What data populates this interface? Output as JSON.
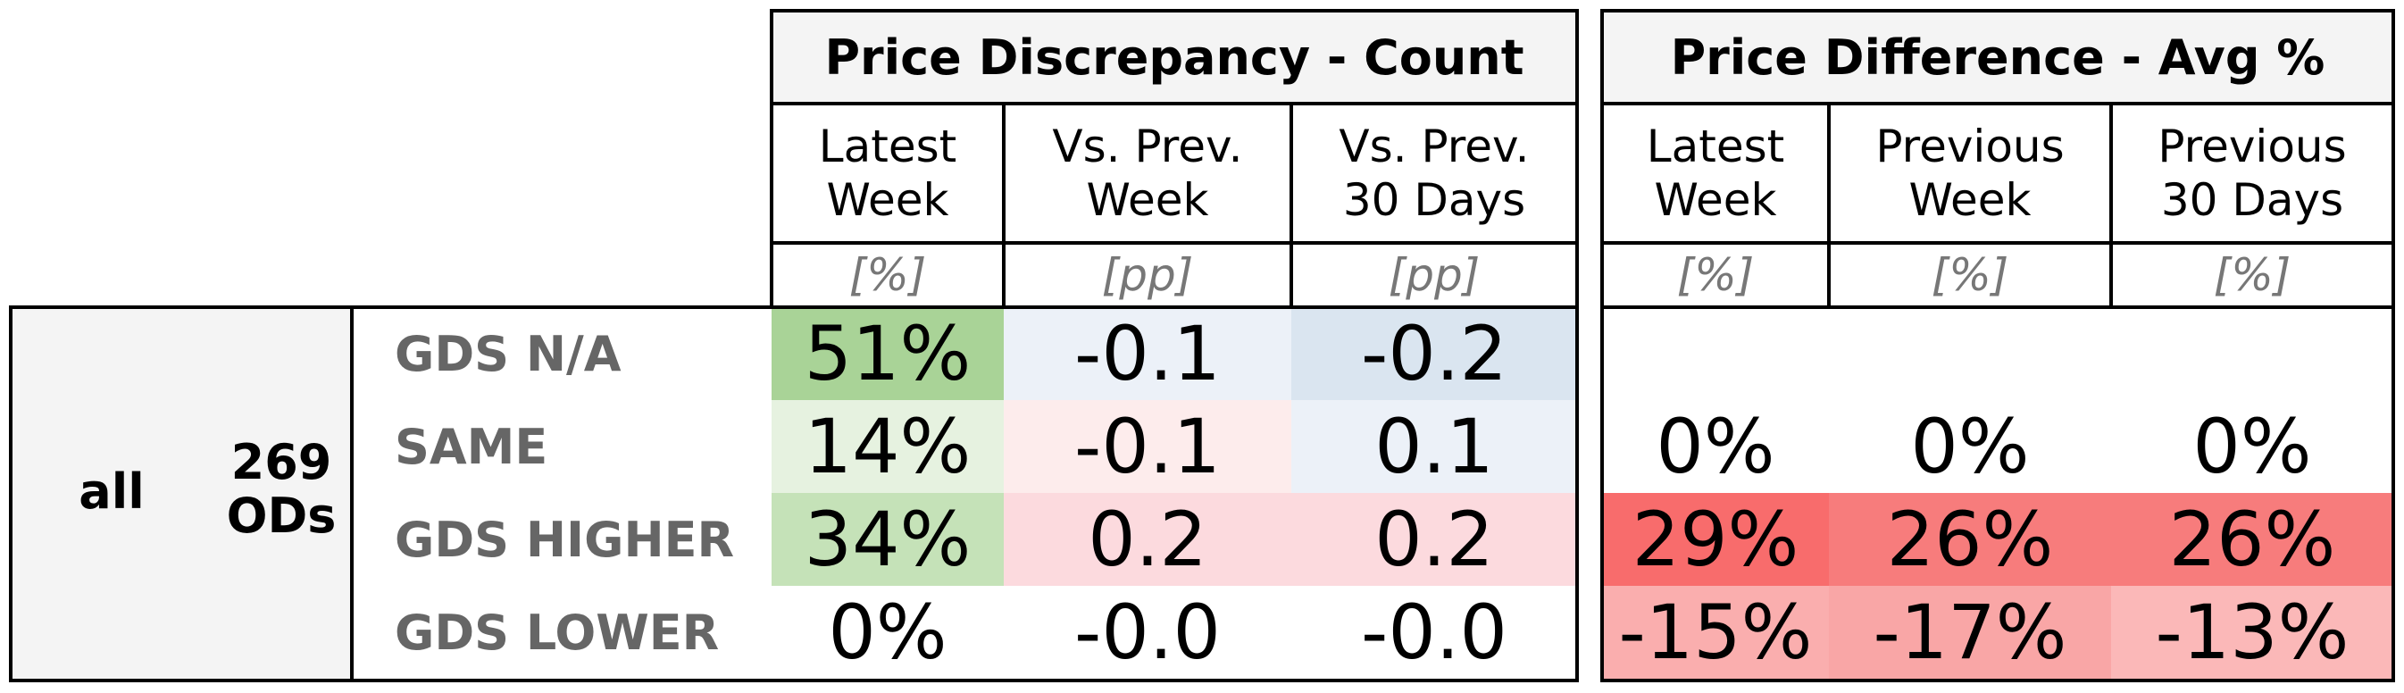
{
  "left_panel": {
    "group_label": "all",
    "od_count": "269",
    "od_unit": "ODs",
    "rows": [
      "GDS N/A",
      "SAME",
      "GDS HIGHER",
      "GDS LOWER"
    ]
  },
  "count_table": {
    "title": "Price Discrepancy - Count",
    "columns": [
      {
        "header": "Latest\nWeek",
        "unit": "[%]"
      },
      {
        "header": "Vs. Prev.\nWeek",
        "unit": "[pp]"
      },
      {
        "header": "Vs. Prev.\n30 Days",
        "unit": "[pp]"
      }
    ],
    "cells": [
      [
        {
          "value": "51%",
          "color": "#a9d397"
        },
        {
          "value": "-0.1",
          "color": "#ecf1f8"
        },
        {
          "value": "-0.2",
          "color": "#dae5f0"
        }
      ],
      [
        {
          "value": "14%",
          "color": "#e6f2e0"
        },
        {
          "value": "-0.1",
          "color": "#fdecec"
        },
        {
          "value": "0.1",
          "color": "#ecf1f8"
        }
      ],
      [
        {
          "value": "34%",
          "color": "#c5e2b8"
        },
        {
          "value": "0.2",
          "color": "#fcdade"
        },
        {
          "value": "0.2",
          "color": "#fcdade"
        }
      ],
      [
        {
          "value": "0%",
          "color": "#ffffff"
        },
        {
          "value": "-0.0",
          "color": "#ffffff"
        },
        {
          "value": "-0.0",
          "color": "#ffffff"
        }
      ]
    ]
  },
  "avg_table": {
    "title": "Price Difference - Avg %",
    "columns": [
      {
        "header": "Latest\nWeek",
        "unit": "[%]"
      },
      {
        "header": "Previous\nWeek",
        "unit": "[%]"
      },
      {
        "header": "Previous\n30 Days",
        "unit": "[%]"
      }
    ],
    "cells": [
      [
        {
          "value": "",
          "color": "#ffffff"
        },
        {
          "value": "",
          "color": "#ffffff"
        },
        {
          "value": "",
          "color": "#ffffff"
        }
      ],
      [
        {
          "value": "0%",
          "color": "#ffffff"
        },
        {
          "value": "0%",
          "color": "#ffffff"
        },
        {
          "value": "0%",
          "color": "#ffffff"
        }
      ],
      [
        {
          "value": "29%",
          "color": "#f86c6c"
        },
        {
          "value": "26%",
          "color": "#f77c7c"
        },
        {
          "value": "26%",
          "color": "#f77c7c"
        }
      ],
      [
        {
          "value": "-15%",
          "color": "#faaeae"
        },
        {
          "value": "-17%",
          "color": "#f9a6a6"
        },
        {
          "value": "-13%",
          "color": "#fbb8b8"
        }
      ]
    ]
  }
}
